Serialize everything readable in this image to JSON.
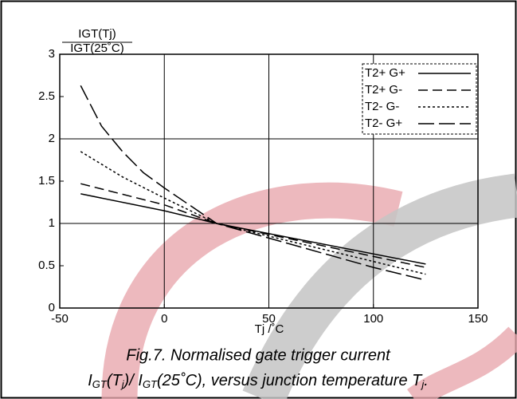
{
  "chart_data": {
    "type": "line",
    "y_label_numerator": "IGT(Tj)",
    "y_label_denominator": "IGT(25˚C)",
    "x_label": "Tj /˚C",
    "xlim": [
      -50,
      150
    ],
    "xticks": [
      -50,
      0,
      50,
      100,
      150
    ],
    "ylim": [
      0,
      3
    ],
    "yticks": [
      0,
      0.5,
      1,
      1.5,
      2,
      2.5,
      3
    ],
    "xgrid": [
      0,
      50,
      100
    ],
    "ygrid": [
      1,
      2
    ],
    "legend": "top-right",
    "series": [
      {
        "name": "T2+ G+",
        "color": "#000000",
        "dash": "none",
        "x": [
          -40,
          0,
          25,
          125
        ],
        "values": [
          1.35,
          1.15,
          1.0,
          0.52
        ]
      },
      {
        "name": "T2+ G-",
        "color": "#000000",
        "dash": "12,6",
        "x": [
          -40,
          0,
          25,
          125
        ],
        "values": [
          1.47,
          1.22,
          1.0,
          0.48
        ]
      },
      {
        "name": "T2- G-",
        "color": "#000000",
        "dash": "3,3",
        "x": [
          -40,
          -20,
          0,
          25,
          125
        ],
        "values": [
          1.85,
          1.55,
          1.3,
          1.0,
          0.4
        ]
      },
      {
        "name": "T2- G+",
        "color": "#000000",
        "dash": "20,6",
        "x": [
          -40,
          -30,
          -20,
          -10,
          0,
          25,
          100,
          125
        ],
        "values": [
          2.63,
          2.15,
          1.85,
          1.6,
          1.42,
          1.0,
          0.48,
          0.33
        ]
      }
    ]
  },
  "caption": {
    "line1": "Fig.7.   Normalised gate trigger current",
    "line2": [
      "I",
      "GT",
      "(T",
      "j",
      ")/ I",
      "GT",
      "(25˚C), versus junction temperature T",
      "j",
      "."
    ]
  }
}
